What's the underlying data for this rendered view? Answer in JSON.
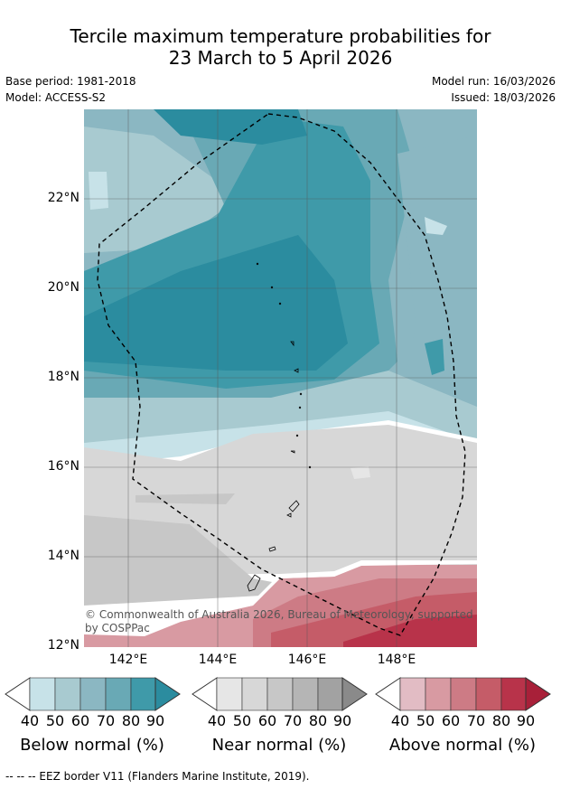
{
  "title_line1": "Tercile maximum temperature probabilities for",
  "title_line2": "23 March to 5 April 2026",
  "meta": {
    "base_period": "Base period: 1981-2018",
    "model": "Model: ACCESS-S2",
    "model_run": "Model run: 16/03/2026",
    "issued": "Issued: 18/03/2026"
  },
  "map": {
    "lat_labels": [
      "22°N",
      "20°N",
      "18°N",
      "16°N",
      "14°N",
      "12°N"
    ],
    "lon_labels": [
      "142°E",
      "144°E",
      "146°E",
      "148°E"
    ],
    "copyright_line1": "© Commonwealth of Australia 2026, Bureau of Meteorology, supported",
    "copyright_line2": "by COSPPac"
  },
  "colorbars": [
    {
      "label": "Below normal (%)",
      "ticks": [
        "40",
        "50",
        "60",
        "70",
        "80",
        "90"
      ],
      "colors": [
        "#c7e2e8",
        "#a8cad0",
        "#8bb7c2",
        "#69a9b5",
        "#3f9aa9",
        "#2b8c9f"
      ]
    },
    {
      "label": "Near normal (%)",
      "ticks": [
        "40",
        "50",
        "60",
        "70",
        "80",
        "90"
      ],
      "colors": [
        "#e6e6e6",
        "#d7d7d7",
        "#c7c7c7",
        "#b5b5b5",
        "#a2a2a2",
        "#8a8a8a"
      ]
    },
    {
      "label": "Above normal (%)",
      "ticks": [
        "40",
        "50",
        "60",
        "70",
        "80",
        "90"
      ],
      "colors": [
        "#e2bcc4",
        "#d89aa2",
        "#cd7b85",
        "#c55c68",
        "#b8334a",
        "#a82039"
      ]
    }
  ],
  "footnote": "--  --  -- EEZ border V11 (Flanders Marine Institute, 2019)."
}
